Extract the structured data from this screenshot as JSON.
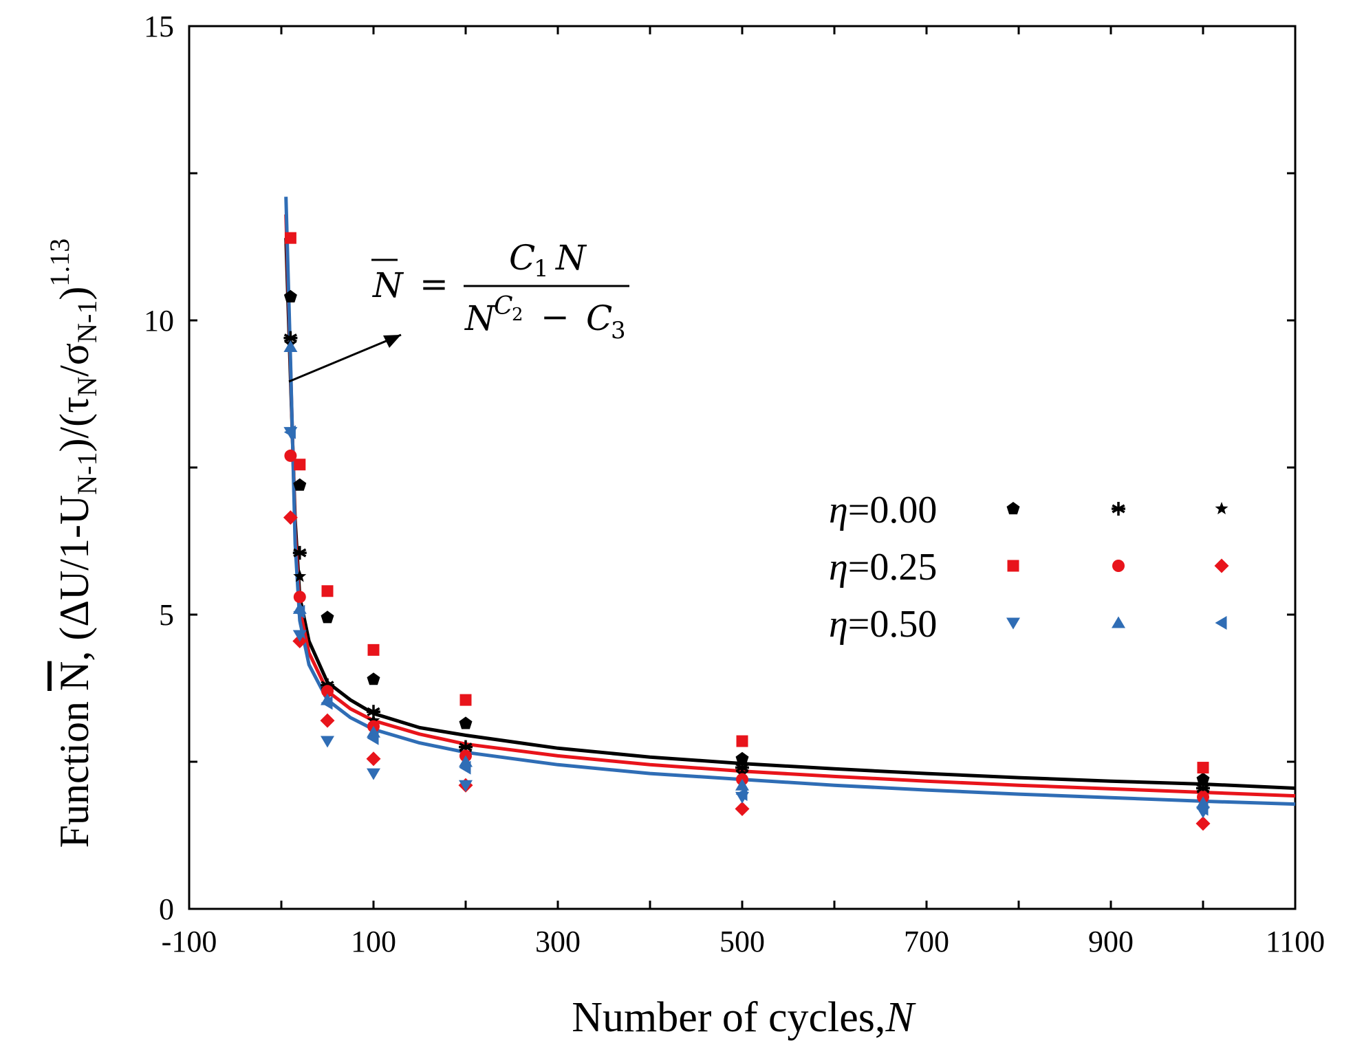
{
  "chart_data": {
    "type": "scatter",
    "title": "",
    "xlabel": {
      "prefix": "Number of cycles,",
      "var": "N"
    },
    "ylabel": {
      "prefix": "Function ",
      "nbar": "N",
      "rest": ", (ΔU/1-U",
      "sub1": "N-1",
      "mid": ")/(τ",
      "sub2": "N",
      "slash": "/σ",
      "sub3": "N-1",
      "close": ")",
      "exp": "1.13"
    },
    "xlim": [
      -100,
      1100
    ],
    "ylim": [
      0,
      15
    ],
    "xticks": [
      "-100",
      "100",
      "300",
      "500",
      "700",
      "900",
      "1100"
    ],
    "yticks": [
      "0",
      "5",
      "10",
      "15"
    ],
    "grid": false,
    "legend_position": "right",
    "legend": [
      {
        "label_prefix": "η",
        "label_value": "=0.00",
        "color": "#000000",
        "markers": [
          "pentagon",
          "asterisk",
          "star"
        ]
      },
      {
        "label_prefix": "η",
        "label_value": "=0.25",
        "color": "#e8141b",
        "markers": [
          "square",
          "circle",
          "diamond"
        ]
      },
      {
        "label_prefix": "η",
        "label_value": "=0.50",
        "color": "#2f6db5",
        "markers": [
          "triangle-down",
          "triangle-up",
          "triangle-left"
        ]
      }
    ],
    "series": [
      {
        "name": "η=0.00 pentagon",
        "marker": "pentagon",
        "color": "#000000",
        "x": [
          10,
          20,
          50,
          100,
          200,
          500,
          1000
        ],
        "y": [
          10.4,
          7.2,
          4.95,
          3.9,
          3.15,
          2.55,
          2.2
        ]
      },
      {
        "name": "η=0.00 asterisk",
        "marker": "asterisk",
        "color": "#000000",
        "x": [
          10,
          20,
          50,
          100,
          200,
          500,
          1000
        ],
        "y": [
          9.7,
          6.05,
          3.8,
          3.35,
          2.75,
          2.4,
          2.05
        ]
      },
      {
        "name": "η=0.00 star",
        "marker": "star",
        "color": "#000000",
        "x": [
          10,
          20,
          50,
          100,
          200,
          500,
          1000
        ],
        "y": [
          9.6,
          5.65,
          3.7,
          3.2,
          2.65,
          2.3,
          1.95
        ]
      },
      {
        "name": "η=0.25 square",
        "marker": "square",
        "color": "#e8141b",
        "x": [
          10,
          20,
          50,
          100,
          200,
          500,
          1000
        ],
        "y": [
          11.4,
          7.55,
          5.4,
          4.4,
          3.55,
          2.85,
          2.4
        ]
      },
      {
        "name": "η=0.25 circle",
        "marker": "circle",
        "color": "#e8141b",
        "x": [
          10,
          20,
          50,
          100,
          200,
          500,
          1000
        ],
        "y": [
          7.7,
          5.3,
          3.7,
          3.1,
          2.6,
          2.2,
          1.9
        ]
      },
      {
        "name": "η=0.25 diamond",
        "marker": "diamond",
        "color": "#e8141b",
        "x": [
          10,
          20,
          50,
          100,
          200,
          500,
          1000
        ],
        "y": [
          6.65,
          4.55,
          3.2,
          2.55,
          2.1,
          1.7,
          1.45
        ]
      },
      {
        "name": "η=0.50 triangle-down",
        "marker": "triangle-down",
        "color": "#2f6db5",
        "x": [
          10,
          20,
          50,
          100,
          200,
          500,
          1000
        ],
        "y": [
          8.1,
          4.65,
          2.85,
          2.3,
          2.1,
          1.9,
          1.65
        ]
      },
      {
        "name": "η=0.50 triangle-up",
        "marker": "triangle-up",
        "color": "#2f6db5",
        "x": [
          10,
          20,
          50,
          100,
          200,
          500,
          1000
        ],
        "y": [
          9.55,
          5.1,
          3.55,
          3.0,
          2.5,
          2.1,
          1.8
        ]
      },
      {
        "name": "η=0.50 triangle-left",
        "marker": "triangle-left",
        "color": "#2f6db5",
        "x": [
          10,
          20,
          50,
          100,
          200,
          500,
          1000
        ],
        "y": [
          8.1,
          5.05,
          3.5,
          2.9,
          2.4,
          1.95,
          1.7
        ]
      }
    ],
    "fit_curves": [
      {
        "name": "fit η=0.00",
        "color": "#000000",
        "x": [
          5,
          10,
          15,
          20,
          30,
          50,
          75,
          100,
          150,
          200,
          300,
          400,
          500,
          600,
          700,
          800,
          900,
          1000,
          1100
        ],
        "y": [
          11.4,
          9.0,
          6.6,
          5.3,
          4.55,
          3.85,
          3.55,
          3.32,
          3.08,
          2.95,
          2.73,
          2.58,
          2.47,
          2.38,
          2.3,
          2.23,
          2.17,
          2.12,
          2.05
        ]
      },
      {
        "name": "fit η=0.25",
        "color": "#e8141b",
        "x": [
          5,
          10,
          15,
          20,
          30,
          50,
          75,
          100,
          150,
          200,
          300,
          400,
          500,
          600,
          700,
          800,
          900,
          1000,
          1100
        ],
        "y": [
          11.8,
          9.2,
          6.4,
          5.1,
          4.35,
          3.7,
          3.4,
          3.2,
          2.97,
          2.8,
          2.6,
          2.45,
          2.34,
          2.25,
          2.17,
          2.1,
          2.04,
          1.98,
          1.92
        ]
      },
      {
        "name": "fit η=0.50",
        "color": "#2f6db5",
        "x": [
          5,
          10,
          15,
          20,
          30,
          50,
          75,
          100,
          150,
          200,
          300,
          400,
          500,
          600,
          700,
          800,
          900,
          1000,
          1100
        ],
        "y": [
          12.1,
          9.3,
          6.2,
          4.9,
          4.15,
          3.55,
          3.25,
          3.05,
          2.82,
          2.66,
          2.45,
          2.3,
          2.2,
          2.1,
          2.02,
          1.95,
          1.89,
          1.83,
          1.78
        ]
      }
    ],
    "annotation": {
      "lhs": "N",
      "eq": "=",
      "num_c": "C",
      "num_sub": "1",
      "num_n": "N",
      "den_n": "N",
      "den_c": "C",
      "den_csub": "2",
      "den_minus": "−",
      "den_c3": "C",
      "den_c3sub": "3"
    }
  }
}
